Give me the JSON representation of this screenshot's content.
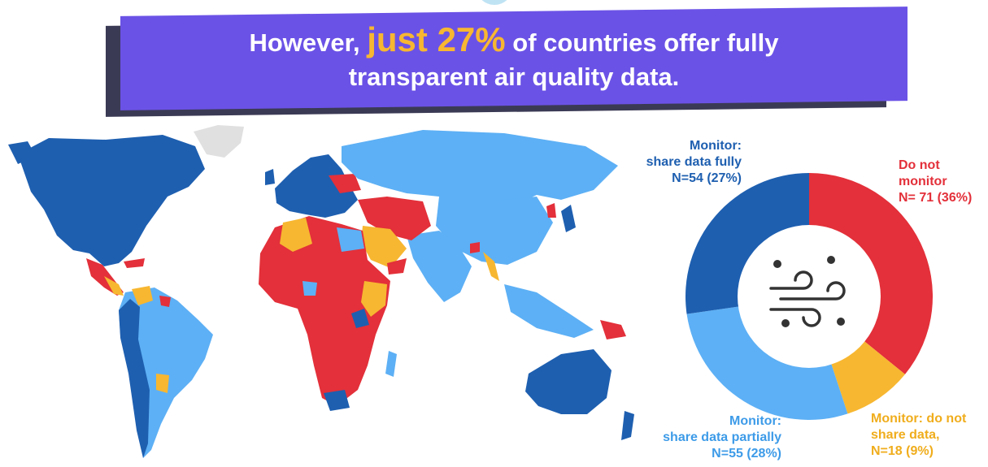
{
  "banner": {
    "prefix": "However,",
    "highlight": "just 27%",
    "suffix": "of countries offer fully",
    "line2": "transparent air quality data."
  },
  "colors": {
    "share_fully": "#1e5fb0",
    "share_partially": "#5db0f5",
    "not_share": "#f7b731",
    "not_monitor": "#e3303a",
    "banner": "#6b52e6",
    "banner_shadow": "#3b3a55",
    "highlight": "#f7b731",
    "no_data": "#e0e0e0"
  },
  "chart_data": {
    "type": "pie",
    "categories": [
      "Do not monitor",
      "Monitor: do not share data",
      "Monitor: share data partially",
      "Monitor: share data fully"
    ],
    "values": [
      71,
      18,
      55,
      54
    ],
    "percents": [
      36,
      9,
      28,
      27
    ],
    "labels": [
      {
        "lines": [
          "Do not",
          "monitor",
          "N= 71 (36%)"
        ]
      },
      {
        "lines": [
          "Monitor: do not",
          "share data,",
          "N=18 (9%)"
        ]
      },
      {
        "lines": [
          "Monitor:",
          "share data partially",
          "N=55 (28%)"
        ]
      },
      {
        "lines": [
          "Monitor:",
          "share data fully",
          "N=54 (27%)"
        ]
      }
    ],
    "center_icon": "wind-weather-icon"
  }
}
